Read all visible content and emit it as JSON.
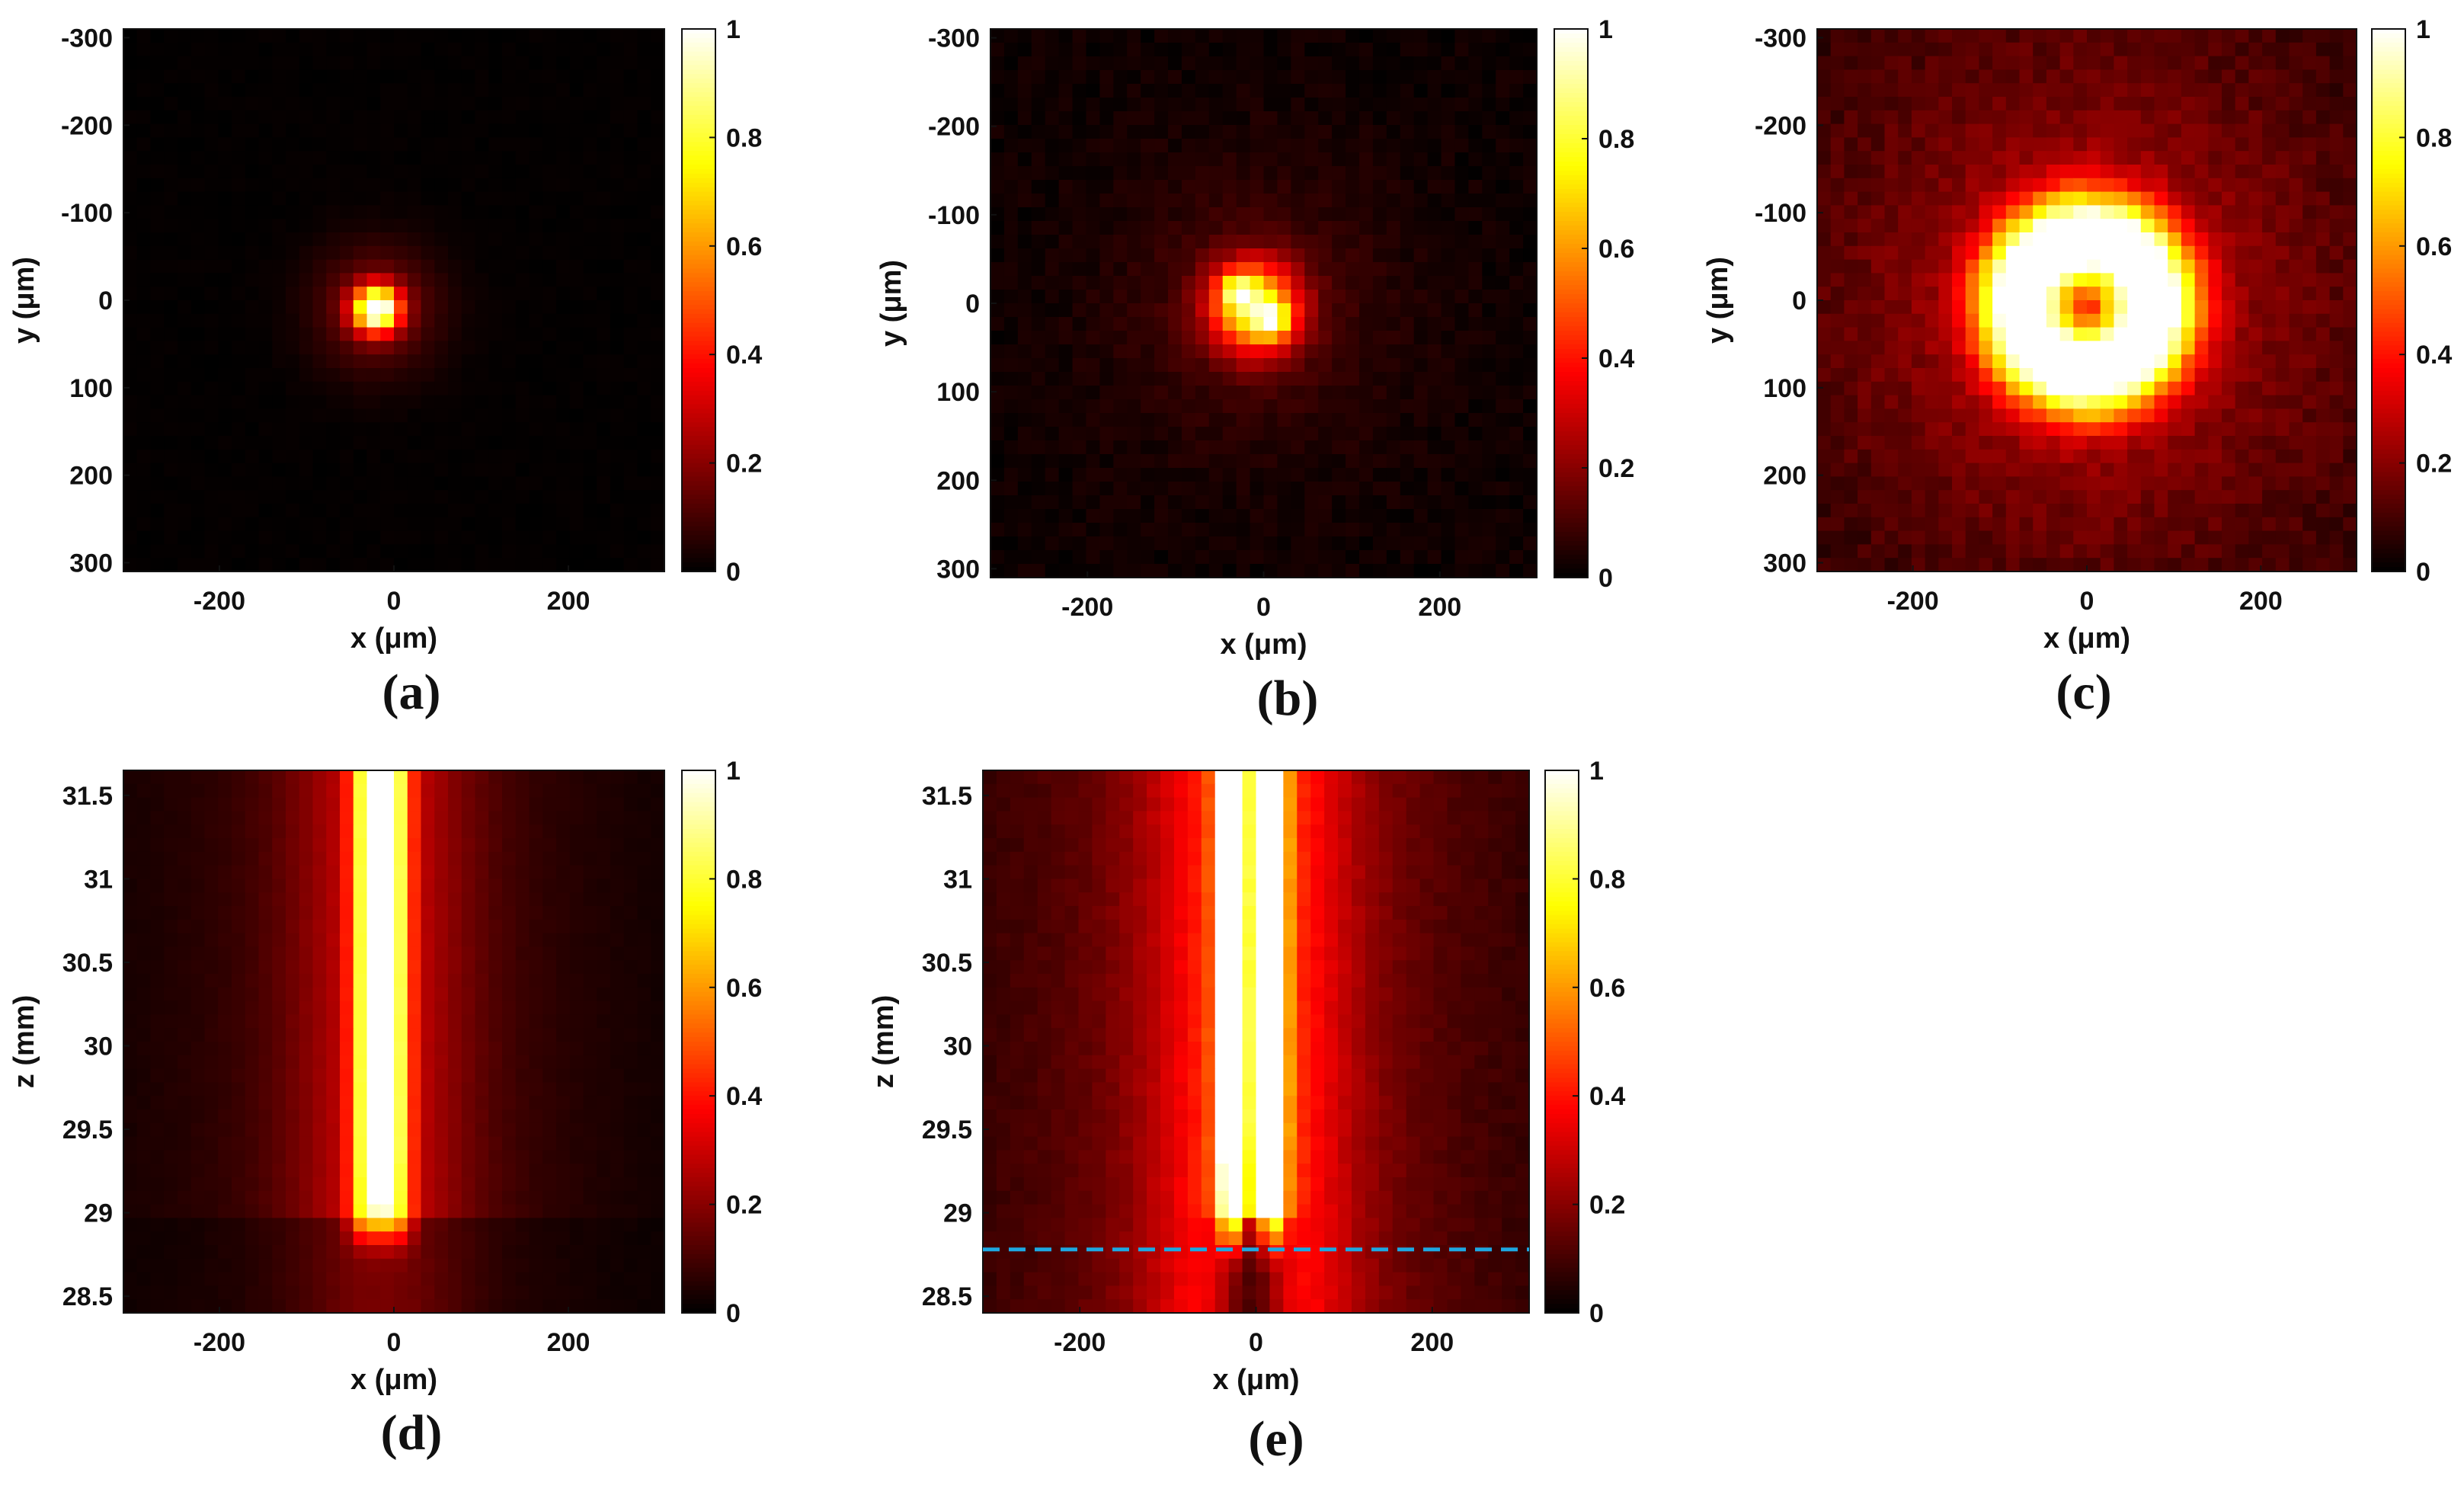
{
  "chart_data": [
    {
      "id": "a",
      "type": "heatmap",
      "pattern": "gaussian-spot",
      "panel_label": "(a)",
      "xlabel": "x (μm)",
      "ylabel": "y (μm)",
      "xlim": [
        -310,
        310
      ],
      "ylim": [
        -310,
        310
      ],
      "y_reversed": true,
      "xticks": [
        -200,
        0,
        200
      ],
      "yticks": [
        -300,
        -200,
        -100,
        0,
        100,
        200,
        300
      ],
      "spot_center": [
        -20,
        10
      ],
      "spot_sigma": 18,
      "colorbar": {
        "min": 0,
        "max": 1,
        "ticks": [
          0,
          0.2,
          0.4,
          0.6,
          0.8,
          1
        ],
        "colormap": "hot"
      }
    },
    {
      "id": "b",
      "type": "heatmap",
      "pattern": "double-spot",
      "panel_label": "(b)",
      "xlabel": "x (μm)",
      "ylabel": "y (μm)",
      "xlim": [
        -310,
        310
      ],
      "ylim": [
        -310,
        310
      ],
      "y_reversed": true,
      "xticks": [
        -200,
        0,
        200
      ],
      "yticks": [
        -300,
        -200,
        -100,
        0,
        100,
        200,
        300
      ],
      "spot_center": [
        -10,
        5
      ],
      "spot_sigma": 35,
      "colorbar": {
        "min": 0,
        "max": 1,
        "ticks": [
          0,
          0.2,
          0.4,
          0.6,
          0.8,
          1
        ],
        "colormap": "hot"
      }
    },
    {
      "id": "c",
      "type": "heatmap",
      "pattern": "ring",
      "panel_label": "(c)",
      "xlabel": "x (μm)",
      "ylabel": "y (μm)",
      "xlim": [
        -310,
        310
      ],
      "ylim": [
        -310,
        310
      ],
      "y_reversed": true,
      "xticks": [
        -200,
        0,
        200
      ],
      "yticks": [
        -300,
        -200,
        -100,
        0,
        100,
        200,
        300
      ],
      "spot_center": [
        0,
        5
      ],
      "ring_radius": 75,
      "ring_width": 38,
      "colorbar": {
        "min": 0,
        "max": 1,
        "ticks": [
          0,
          0.2,
          0.4,
          0.6,
          0.8,
          1
        ],
        "colormap": "hot"
      }
    },
    {
      "id": "d",
      "type": "heatmap",
      "pattern": "bessel-core",
      "panel_label": "(d)",
      "xlabel": "x (μm)",
      "ylabel": "z (mm)",
      "xlim": [
        -310,
        310
      ],
      "ylim": [
        28.4,
        31.65
      ],
      "y_reversed": false,
      "xticks": [
        -200,
        0,
        200
      ],
      "yticks": [
        28.5,
        29,
        29.5,
        30,
        30.5,
        31,
        31.5
      ],
      "core_x": -15,
      "core_start_z": 29.0,
      "colorbar": {
        "min": 0,
        "max": 1,
        "ticks": [
          0,
          0.2,
          0.4,
          0.6,
          0.8,
          1
        ],
        "colormap": "hot"
      }
    },
    {
      "id": "e",
      "type": "heatmap",
      "pattern": "hollow-core",
      "panel_label": "(e)",
      "xlabel": "x (μm)",
      "ylabel": "z (mm)",
      "xlim": [
        -310,
        310
      ],
      "ylim": [
        28.4,
        31.65
      ],
      "y_reversed": false,
      "xticks": [
        -200,
        0,
        200
      ],
      "yticks": [
        28.5,
        29,
        29.5,
        30,
        30.5,
        31,
        31.5
      ],
      "core_x": -5,
      "core_start_z": 29.0,
      "dashed_line_z": 28.78,
      "dashed_line_color": "#1ea7e1",
      "colorbar": {
        "min": 0,
        "max": 1,
        "ticks": [
          0,
          0.2,
          0.4,
          0.6,
          0.8,
          1
        ],
        "colormap": "hot"
      }
    }
  ]
}
